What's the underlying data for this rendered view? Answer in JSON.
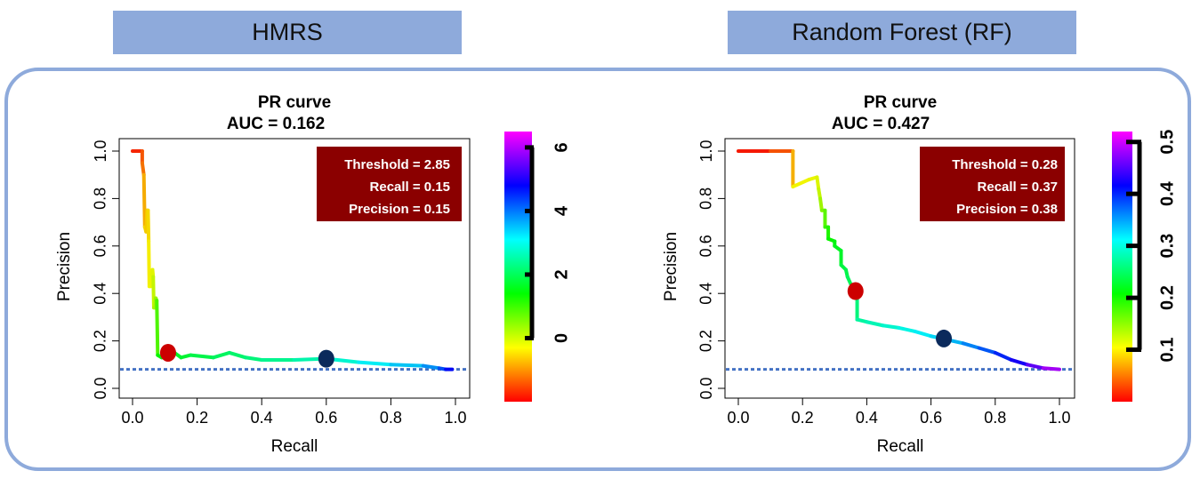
{
  "headers": {
    "left": "HMRS",
    "right": "Random Forest (RF)"
  },
  "colors": {
    "header_fill": "#8eaadb",
    "frame": "#8eaadb",
    "baseline": "#4472c4",
    "info_box": "#8b0000",
    "marker_red": "#cc0000",
    "marker_navy": "#0b2a5c"
  },
  "chart_data": [
    {
      "type": "line",
      "title": "PR curve",
      "subtitle": "AUC = 0.162",
      "xlabel": "Recall",
      "ylabel": "Precision",
      "xlim": [
        0,
        1
      ],
      "ylim": [
        0,
        1
      ],
      "xticks": [
        "0.0",
        "0.2",
        "0.4",
        "0.6",
        "0.8",
        "1.0"
      ],
      "yticks": [
        "0.0",
        "0.2",
        "0.4",
        "0.6",
        "0.8",
        "1.0"
      ],
      "info": [
        "Threshold = 2.85",
        "Recall = 0.15",
        "Precision = 0.15"
      ],
      "baseline": 0.08,
      "colorbar": {
        "min": -2,
        "max": 6.5,
        "ticks": [
          "0",
          "2",
          "4",
          "6"
        ],
        "tick_values": [
          0,
          2,
          4,
          6
        ]
      },
      "points": [
        {
          "x": 0.11,
          "y": 0.15,
          "color": "#cc0000"
        },
        {
          "x": 0.6,
          "y": 0.125,
          "color": "#0b2a5c"
        }
      ],
      "curve": [
        [
          0.0,
          1.0,
          6.5
        ],
        [
          0.03,
          1.0,
          6.0
        ],
        [
          0.03,
          0.95,
          5.8
        ],
        [
          0.035,
          0.9,
          5.6
        ],
        [
          0.038,
          0.68,
          5.0
        ],
        [
          0.042,
          0.66,
          5.0
        ],
        [
          0.045,
          0.75,
          5.2
        ],
        [
          0.048,
          0.75,
          5.1
        ],
        [
          0.05,
          0.62,
          4.9
        ],
        [
          0.052,
          0.43,
          4.8
        ],
        [
          0.056,
          0.43,
          4.8
        ],
        [
          0.058,
          0.48,
          4.7
        ],
        [
          0.062,
          0.5,
          4.7
        ],
        [
          0.064,
          0.47,
          4.6
        ],
        [
          0.066,
          0.34,
          4.3
        ],
        [
          0.07,
          0.34,
          4.3
        ],
        [
          0.072,
          0.38,
          4.2
        ],
        [
          0.075,
          0.37,
          4.1
        ],
        [
          0.078,
          0.14,
          3.2
        ],
        [
          0.09,
          0.13,
          3.0
        ],
        [
          0.1,
          0.16,
          3.0
        ],
        [
          0.13,
          0.15,
          2.9
        ],
        [
          0.15,
          0.13,
          2.8
        ],
        [
          0.18,
          0.14,
          2.7
        ],
        [
          0.25,
          0.13,
          2.5
        ],
        [
          0.3,
          0.15,
          2.4
        ],
        [
          0.35,
          0.13,
          2.3
        ],
        [
          0.4,
          0.12,
          2.2
        ],
        [
          0.5,
          0.12,
          2.0
        ],
        [
          0.6,
          0.125,
          1.8
        ],
        [
          0.7,
          0.11,
          1.5
        ],
        [
          0.8,
          0.1,
          1.2
        ],
        [
          0.9,
          0.095,
          0.9
        ],
        [
          0.95,
          0.085,
          0.5
        ],
        [
          0.97,
          0.08,
          0.0
        ],
        [
          0.99,
          0.08,
          -0.5
        ]
      ]
    },
    {
      "type": "line",
      "title": "PR curve",
      "subtitle": "AUC = 0.427",
      "xlabel": "Recall",
      "ylabel": "Precision",
      "xlim": [
        0,
        1
      ],
      "ylim": [
        0,
        1
      ],
      "xticks": [
        "0.0",
        "0.2",
        "0.4",
        "0.6",
        "0.8",
        "1.0"
      ],
      "yticks": [
        "0.0",
        "0.2",
        "0.4",
        "0.6",
        "0.8",
        "1.0"
      ],
      "info": [
        "Threshold = 0.28",
        "Recall = 0.37",
        "Precision = 0.38"
      ],
      "baseline": 0.08,
      "colorbar": {
        "min": 0.0,
        "max": 0.52,
        "ticks": [
          "0.1",
          "0.2",
          "0.3",
          "0.4",
          "0.5"
        ],
        "tick_values": [
          0.1,
          0.2,
          0.3,
          0.4,
          0.5
        ]
      },
      "points": [
        {
          "x": 0.365,
          "y": 0.41,
          "color": "#cc0000"
        },
        {
          "x": 0.64,
          "y": 0.21,
          "color": "#0b2a5c"
        }
      ],
      "curve": [
        [
          0.0,
          1.0,
          0.52
        ],
        [
          0.1,
          1.0,
          0.5
        ],
        [
          0.17,
          1.0,
          0.47
        ],
        [
          0.17,
          0.85,
          0.42
        ],
        [
          0.22,
          0.88,
          0.41
        ],
        [
          0.245,
          0.89,
          0.41
        ],
        [
          0.25,
          0.84,
          0.4
        ],
        [
          0.255,
          0.8,
          0.39
        ],
        [
          0.26,
          0.75,
          0.37
        ],
        [
          0.27,
          0.75,
          0.36
        ],
        [
          0.27,
          0.68,
          0.34
        ],
        [
          0.28,
          0.68,
          0.33
        ],
        [
          0.28,
          0.63,
          0.32
        ],
        [
          0.3,
          0.62,
          0.31
        ],
        [
          0.3,
          0.6,
          0.3
        ],
        [
          0.32,
          0.58,
          0.3
        ],
        [
          0.32,
          0.52,
          0.29
        ],
        [
          0.335,
          0.5,
          0.28
        ],
        [
          0.34,
          0.47,
          0.28
        ],
        [
          0.37,
          0.38,
          0.27
        ],
        [
          0.37,
          0.29,
          0.25
        ],
        [
          0.4,
          0.28,
          0.24
        ],
        [
          0.45,
          0.265,
          0.23
        ],
        [
          0.5,
          0.255,
          0.22
        ],
        [
          0.55,
          0.24,
          0.21
        ],
        [
          0.6,
          0.22,
          0.2
        ],
        [
          0.65,
          0.205,
          0.19
        ],
        [
          0.7,
          0.19,
          0.17
        ],
        [
          0.75,
          0.17,
          0.15
        ],
        [
          0.8,
          0.15,
          0.13
        ],
        [
          0.85,
          0.12,
          0.11
        ],
        [
          0.9,
          0.1,
          0.08
        ],
        [
          0.95,
          0.085,
          0.05
        ],
        [
          1.0,
          0.08,
          0.02
        ]
      ]
    }
  ]
}
